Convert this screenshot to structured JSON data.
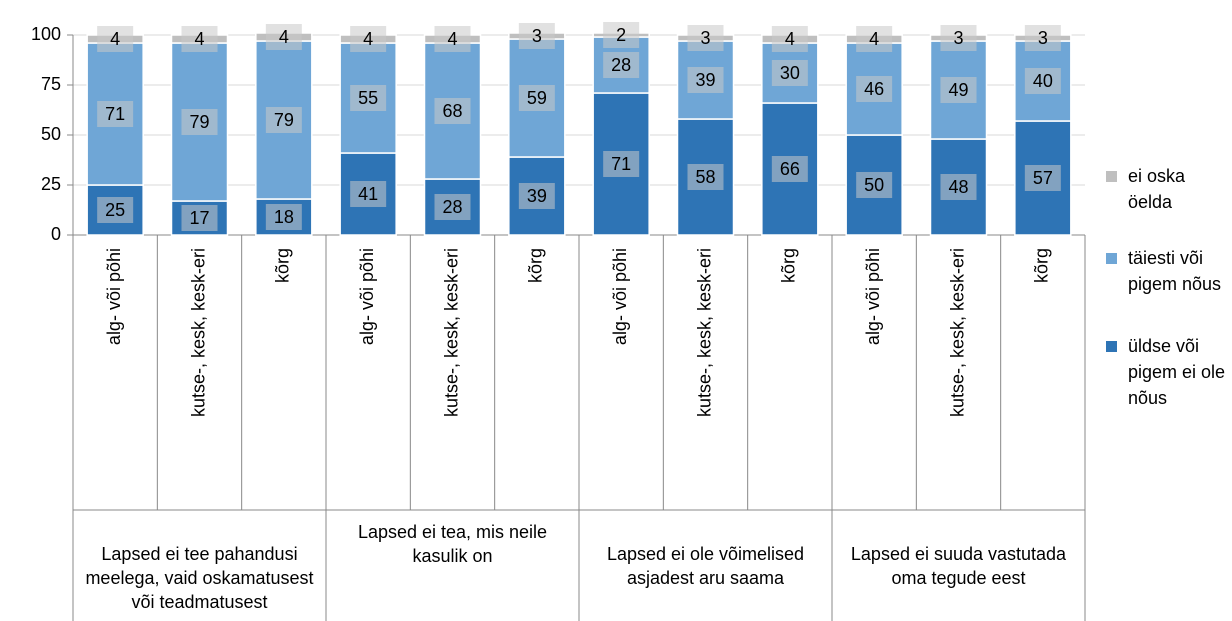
{
  "chart_data": {
    "type": "stacked_bar",
    "categories": [
      "alg- või põhi",
      "kutse-, kesk, kesk-eri",
      "kõrg",
      "alg- või põhi",
      "kutse-, kesk, kesk-eri",
      "kõrg",
      "alg- või põhi",
      "kutse-, kesk, kesk-eri",
      "kõrg",
      "alg- või põhi",
      "kutse-, kesk, kesk-eri",
      "kõrg"
    ],
    "groups": [
      "Lapsed ei tee pahandusi meelega, vaid oskamatusest või teadmatusest",
      "Lapsed ei tea, mis neile kasulik on",
      "Lapsed ei ole võimelised asjadest aru saama",
      "Lapsed ei suuda vastutada oma tegude eest"
    ],
    "series": [
      {
        "name": "üldse või pigem ei ole nõus",
        "color": "#2e74b5",
        "values": [
          25,
          17,
          18,
          41,
          28,
          39,
          71,
          58,
          66,
          50,
          48,
          57
        ]
      },
      {
        "name": "täiesti või pigem nõus",
        "color": "#6fa6d6",
        "values": [
          71,
          79,
          79,
          55,
          68,
          59,
          28,
          39,
          30,
          46,
          49,
          40
        ]
      },
      {
        "name": "ei oska öelda",
        "color": "#bfbfbf",
        "values": [
          4,
          4,
          4,
          4,
          4,
          3,
          2,
          3,
          4,
          4,
          3,
          3
        ]
      }
    ],
    "ylim": [
      0,
      100
    ],
    "yticks": [
      0,
      25,
      50,
      75,
      100
    ],
    "grid": true,
    "legend": "right"
  }
}
